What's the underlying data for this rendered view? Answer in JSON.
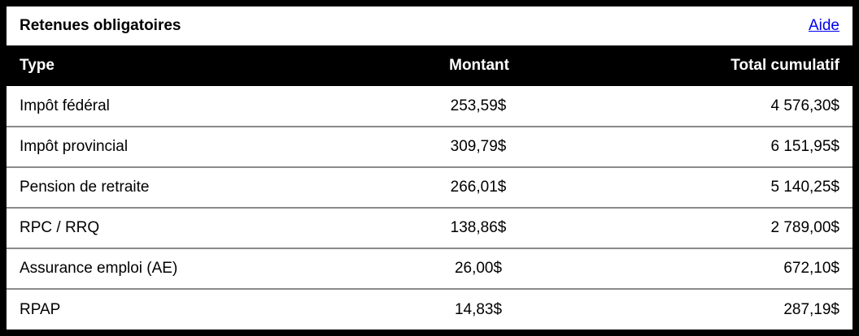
{
  "panel": {
    "title": "Retenues obligatoires",
    "help_link": "Aide"
  },
  "table": {
    "headers": {
      "type": "Type",
      "amount": "Montant",
      "total": "Total cumulatif"
    },
    "rows": [
      {
        "type": "Impôt fédéral",
        "amount": "253,59$",
        "total": "4 576,30$"
      },
      {
        "type": "Impôt provincial",
        "amount": "309,79$",
        "total": "6 151,95$"
      },
      {
        "type": "Pension de retraite",
        "amount": "266,01$",
        "total": "5 140,25$"
      },
      {
        "type": "RPC / RRQ",
        "amount": "138,86$",
        "total": "2 789,00$"
      },
      {
        "type": "Assurance emploi (AE)",
        "amount": "26,00$",
        "total": "672,10$"
      },
      {
        "type": "RPAP",
        "amount": "14,83$",
        "total": "287,19$"
      }
    ]
  },
  "colors": {
    "header_background": "#000000",
    "header_text": "#ffffff",
    "link": "#0000ee",
    "row_divider": "#8a8a8a"
  }
}
